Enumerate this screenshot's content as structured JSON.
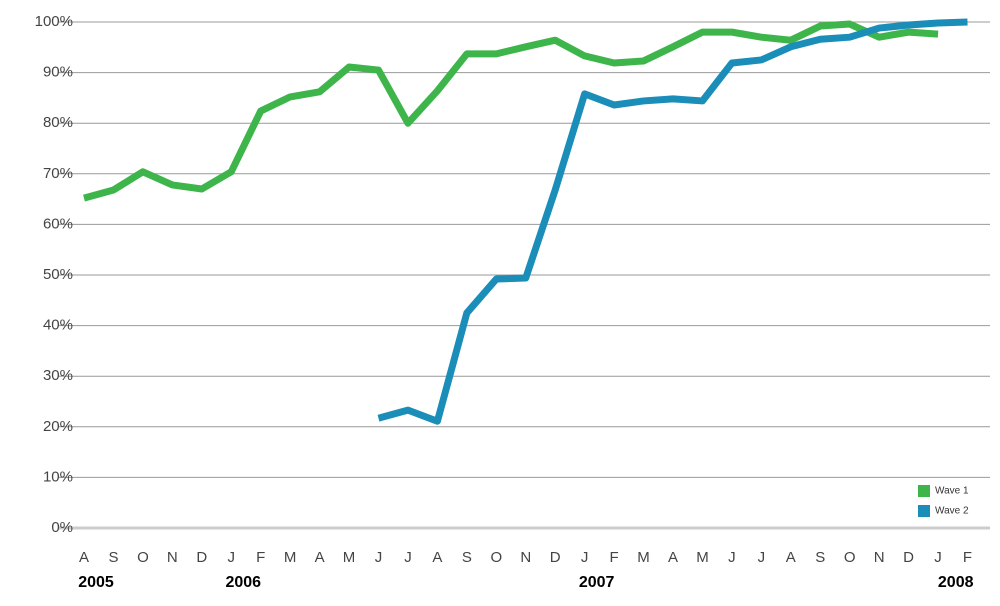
{
  "chart_data": {
    "type": "line",
    "categories": [
      "A",
      "S",
      "O",
      "N",
      "D",
      "J",
      "F",
      "M",
      "A",
      "M",
      "J",
      "J",
      "A",
      "S",
      "O",
      "N",
      "D",
      "J",
      "F",
      "M",
      "A",
      "M",
      "J",
      "J",
      "A",
      "S",
      "O",
      "N",
      "D",
      "J",
      "F"
    ],
    "year_labels": [
      "2005",
      null,
      null,
      null,
      null,
      "2006",
      null,
      null,
      null,
      null,
      null,
      null,
      null,
      null,
      null,
      null,
      null,
      "2007",
      null,
      null,
      null,
      null,
      null,
      null,
      null,
      null,
      null,
      null,
      null,
      null,
      "2008"
    ],
    "series": [
      {
        "name": "Wave 1",
        "color": "#3db54a",
        "values": [
          65.2,
          66.8,
          70.4,
          67.8,
          67.0,
          70.4,
          82.4,
          85.2,
          86.2,
          91.1,
          90.5,
          80.0,
          86.4,
          93.7,
          93.7,
          95.1,
          96.4,
          93.3,
          91.9,
          92.3,
          95.1,
          98.0,
          98.0,
          97.0,
          96.4,
          99.2,
          99.6,
          97.0,
          98.0,
          97.6,
          null
        ]
      },
      {
        "name": "Wave 2",
        "color": "#1b8db9",
        "values": [
          null,
          null,
          null,
          null,
          null,
          null,
          null,
          null,
          null,
          null,
          21.7,
          23.3,
          21.1,
          42.5,
          49.2,
          49.4,
          66.8,
          85.8,
          83.6,
          84.4,
          84.8,
          84.4,
          91.9,
          92.5,
          95.1,
          96.6,
          97.0,
          98.8,
          99.4,
          99.8,
          100
        ]
      }
    ],
    "ylim": [
      0,
      100
    ],
    "yticks": [
      {
        "value": 0,
        "label": "0%"
      },
      {
        "value": 10,
        "label": "10%"
      },
      {
        "value": 20,
        "label": "20%"
      },
      {
        "value": 30,
        "label": "30%"
      },
      {
        "value": 40,
        "label": "40%"
      },
      {
        "value": 50,
        "label": "50%"
      },
      {
        "value": 60,
        "label": "60%"
      },
      {
        "value": 70,
        "label": "70%"
      },
      {
        "value": 80,
        "label": "80%"
      },
      {
        "value": 90,
        "label": "90%"
      },
      {
        "value": 100,
        "label": "100%"
      }
    ],
    "grid": true,
    "legend": "lower right"
  }
}
